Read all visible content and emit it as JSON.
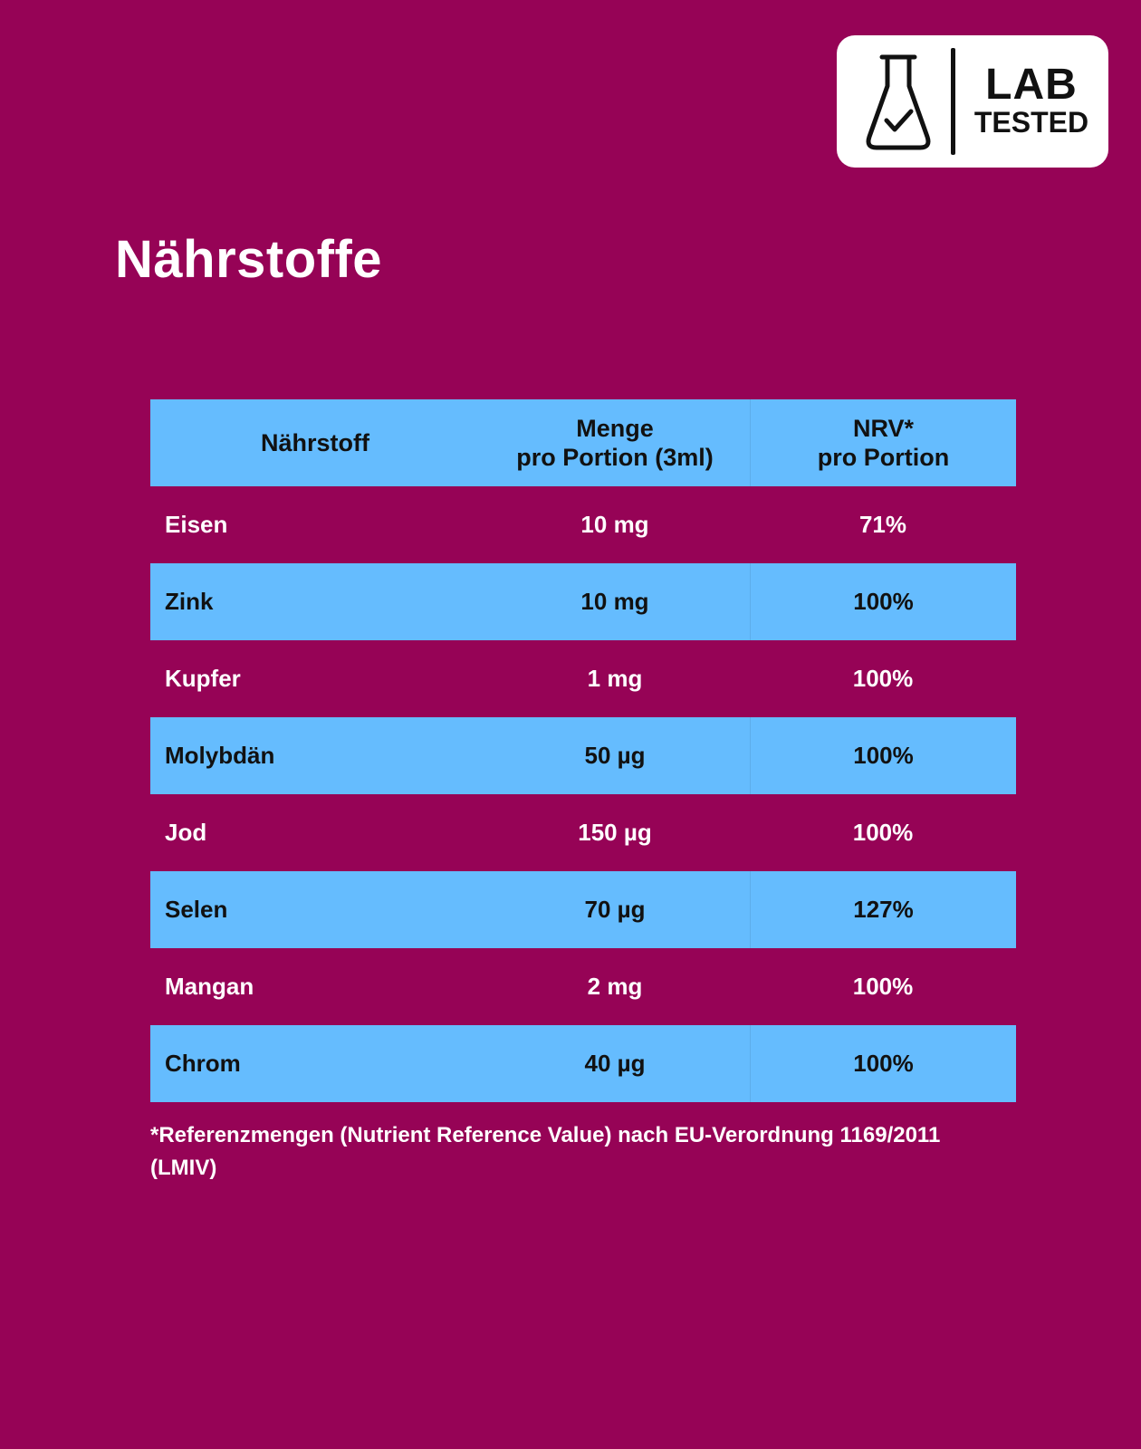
{
  "badge": {
    "icon": "flask-check-icon",
    "line1": "LAB",
    "line2": "TESTED"
  },
  "title": "Nährstoffe",
  "table": {
    "header": {
      "col1": "Nährstoff",
      "col2_line1": "Menge",
      "col2_line2": "pro Portion (3ml)",
      "col3_line1": "NRV*",
      "col3_line2": "pro Portion"
    },
    "rows": [
      {
        "name": "Eisen",
        "amount": "10 mg",
        "nrv": "71%"
      },
      {
        "name": "Zink",
        "amount": "10 mg",
        "nrv": "100%"
      },
      {
        "name": "Kupfer",
        "amount": "1 mg",
        "nrv": "100%"
      },
      {
        "name": "Molybdän",
        "amount": "50 µg",
        "nrv": "100%"
      },
      {
        "name": "Jod",
        "amount": "150 µg",
        "nrv": "100%"
      },
      {
        "name": "Selen",
        "amount": "70 µg",
        "nrv": "127%"
      },
      {
        "name": "Mangan",
        "amount": "2 mg",
        "nrv": "100%"
      },
      {
        "name": "Chrom",
        "amount": "40 µg",
        "nrv": "100%"
      }
    ]
  },
  "footnote": "*Referenzmengen (Nutrient Reference Value) nach EU-Verordnung 1169/2011 (LMIV)",
  "colors": {
    "background": "#960356",
    "table_blue": "#65bcfe",
    "text_light": "#ffffff",
    "text_dark": "#111111"
  }
}
